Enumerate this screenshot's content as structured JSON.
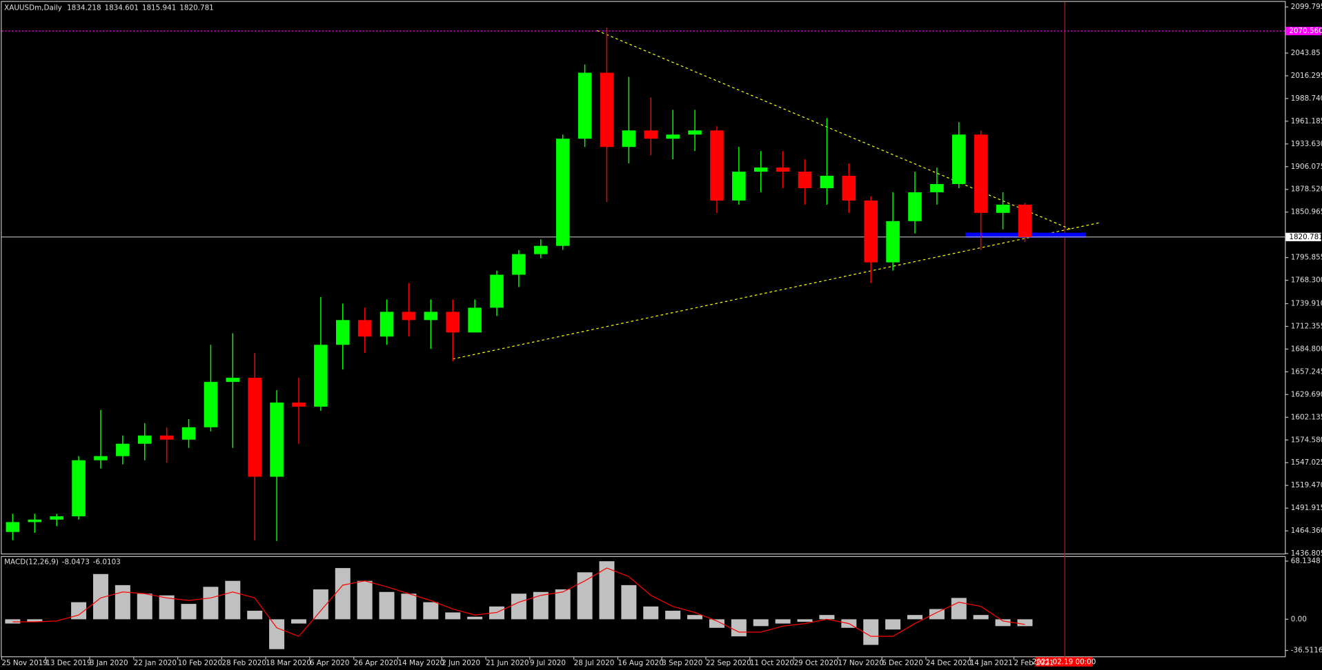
{
  "chart_data": [
    {
      "type": "candlestick",
      "title": "XAUUSDm,Daily",
      "header_values": [
        1834.218,
        1834.601,
        1815.941,
        1820.781
      ],
      "categories": [
        "25 Nov 2019",
        null,
        "13 Dec 2019",
        null,
        "3 Jan 2020",
        null,
        "22 Jan 2020",
        null,
        "10 Feb 2020",
        null,
        "28 Feb 2020",
        null,
        "18 Mar 2020",
        null,
        "6 Apr 2020",
        null,
        "26 Apr 2020",
        null,
        "14 May 2020",
        null,
        "2 Jun 2020",
        null,
        "21 Jun 2020",
        null,
        "9 Jul 2020",
        null,
        "28 Jul 2020",
        null,
        "16 Aug 2020",
        null,
        "3 Sep 2020",
        null,
        "22 Sep 2020",
        null,
        "11 Oct 2020",
        null,
        "29 Oct 2020",
        null,
        "17 Nov 2020",
        null,
        "6 Dec 2020",
        null,
        "24 Dec 2020",
        null,
        "14 Jan 2021",
        null,
        "2 Feb 2021"
      ],
      "open": [
        1463,
        1475,
        1478,
        1482,
        1550,
        1555,
        1570,
        1580,
        1575,
        1590,
        1645,
        1650,
        1530,
        1620,
        1615,
        1690,
        1720,
        1700,
        1730,
        1720,
        1730,
        1705,
        1735,
        1775,
        1800,
        1810,
        1940,
        2020,
        1930,
        1950,
        1940,
        1945,
        1950,
        1865,
        1900,
        1905,
        1900,
        1880,
        1895,
        1865,
        1790,
        1840,
        1875,
        1885,
        1945,
        1850,
        1860
      ],
      "high": [
        1485,
        1485,
        1485,
        1555,
        1611,
        1580,
        1595,
        1590,
        1600,
        1690,
        1704,
        1680,
        1635,
        1650,
        1748,
        1740,
        1735,
        1745,
        1765,
        1745,
        1745,
        1745,
        1780,
        1805,
        1818,
        1945,
        2030,
        2075,
        2015,
        1990,
        1975,
        1975,
        1955,
        1930,
        1925,
        1925,
        1915,
        1965,
        1910,
        1870,
        1875,
        1900,
        1905,
        1960,
        1950,
        1875,
        1862
      ],
      "low": [
        1453,
        1462,
        1470,
        1478,
        1540,
        1545,
        1550,
        1547,
        1565,
        1585,
        1565,
        1453,
        1452,
        1570,
        1610,
        1660,
        1680,
        1690,
        1700,
        1685,
        1670,
        1705,
        1725,
        1760,
        1795,
        1805,
        1930,
        1863,
        1910,
        1920,
        1915,
        1925,
        1850,
        1860,
        1875,
        1880,
        1860,
        1860,
        1850,
        1765,
        1780,
        1825,
        1860,
        1880,
        1805,
        1830,
        1815
      ],
      "close": [
        1475,
        1478,
        1482,
        1550,
        1555,
        1570,
        1580,
        1575,
        1590,
        1645,
        1650,
        1530,
        1620,
        1615,
        1690,
        1720,
        1700,
        1730,
        1720,
        1730,
        1705,
        1735,
        1775,
        1800,
        1810,
        1940,
        2020,
        1930,
        1950,
        1940,
        1945,
        1950,
        1865,
        1900,
        1905,
        1900,
        1880,
        1895,
        1865,
        1790,
        1840,
        1875,
        1885,
        1945,
        1850,
        1860,
        1820.781
      ],
      "up_color": "#00ff00",
      "down_color": "#ff0000",
      "last_price": 1820.781,
      "levels": [
        {
          "value": 2070.56,
          "label": "2070.560",
          "color": "#ff00ff"
        }
      ],
      "ylim": [
        1436.805,
        2099.795
      ],
      "yticks": [
        2099.795,
        2043.85,
        2016.295,
        {
          "value": 1988.74,
          "label": "1988.740"
        },
        1961.185,
        {
          "value": 1933.63,
          "label": "1933.630"
        },
        1906.075,
        {
          "value": 1878.52,
          "label": "1878.520"
        },
        1850.965,
        1795.855,
        {
          "value": 1768.3,
          "label": "1768.300"
        },
        {
          "value": 1739.91,
          "label": "1739.910"
        },
        1712.355,
        {
          "value": 1684.8,
          "label": "1684.800"
        },
        1657.245,
        {
          "value": 1629.69,
          "label": "1629.690"
        },
        1602.135,
        {
          "value": 1574.58,
          "label": "1574.580"
        },
        1547.025,
        {
          "value": 1519.47,
          "label": "1519.470"
        },
        1491.915,
        {
          "value": 1464.36,
          "label": "1464.360"
        },
        1436.805
      ],
      "cursor": "2021.02.19 00:00"
    },
    {
      "type": "macd",
      "title": "MACD(12,26,9)",
      "series": [
        {
          "color": "#c0c0c0",
          "values": [
            -5,
            -3,
            0,
            20,
            53,
            40,
            30,
            28,
            18,
            38,
            45,
            10,
            -35,
            -5,
            35,
            60,
            45,
            32,
            30,
            20,
            8,
            3,
            15,
            30,
            32,
            35,
            55,
            68,
            40,
            15,
            10,
            5,
            -10,
            -20,
            -8,
            -5,
            -3,
            5,
            -10,
            -30,
            -12,
            5,
            12,
            25,
            5,
            -8,
            -8.0473
          ]
        },
        {
          "color": "#ff0000",
          "values": [
            -3,
            -3,
            -2,
            5,
            25,
            32,
            30,
            25,
            22,
            25,
            32,
            25,
            -10,
            -20,
            10,
            40,
            45,
            38,
            30,
            22,
            12,
            5,
            8,
            20,
            28,
            32,
            45,
            60,
            50,
            28,
            15,
            8,
            -2,
            -15,
            -15,
            -8,
            -5,
            0,
            -5,
            -20,
            -20,
            -5,
            8,
            20,
            15,
            -2,
            -6.0103
          ]
        }
      ],
      "ylim": [
        -44.4,
        74
      ],
      "yticks": [
        68.1348,
        {
          "value": 0,
          "label": "0.00"
        },
        -36.5116
      ]
    }
  ]
}
